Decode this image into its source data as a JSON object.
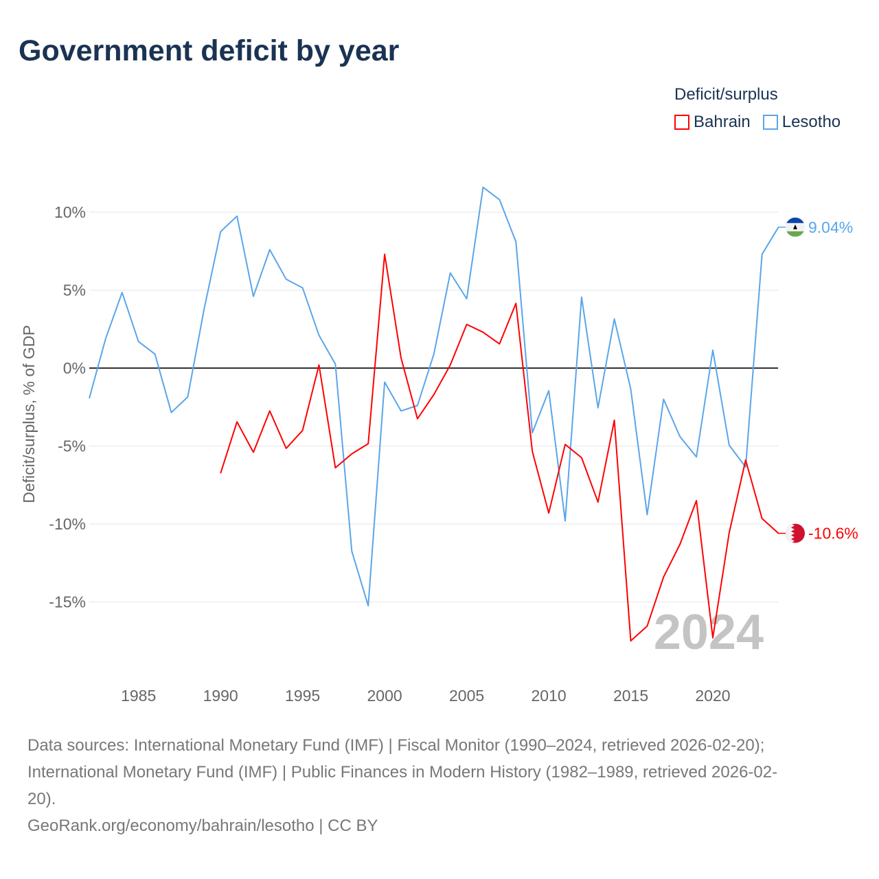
{
  "title": "Government deficit by year",
  "legend": {
    "title": "Deficit/surplus",
    "items": [
      {
        "name": "Bahrain",
        "color": "#ff0000"
      },
      {
        "name": "Lesotho",
        "color": "#5aa5ea"
      }
    ]
  },
  "year_watermark": "2024",
  "sources": {
    "line1": "Data sources: International Monetary Fund (IMF) | Fiscal Monitor (1990–2024, retrieved 2026-02-20);",
    "line2": "International Monetary Fund (IMF) | Public Finances in Modern History (1982–1989, retrieved 2026-02-",
    "line3": "20).",
    "line4": "GeoRank.org/economy/bahrain/lesotho | CC BY"
  },
  "chart_data": {
    "type": "line",
    "title": "Government deficit by year",
    "xlabel": "",
    "ylabel": "Deficit/surplus, % of GDP",
    "xlim": [
      1982,
      2024
    ],
    "ylim": [
      -19,
      12
    ],
    "xticks": [
      1985,
      1990,
      1995,
      2000,
      2005,
      2010,
      2015,
      2020
    ],
    "yticks": [
      {
        "v": 10,
        "label": "10%"
      },
      {
        "v": 5,
        "label": "5%"
      },
      {
        "v": 0,
        "label": "0%"
      },
      {
        "v": -5,
        "label": "-5%"
      },
      {
        "v": -10,
        "label": "-10%"
      },
      {
        "v": -15,
        "label": "-15%"
      }
    ],
    "grid": true,
    "series": [
      {
        "name": "Lesotho",
        "color": "#5aa5ea",
        "end_label": "9.04%",
        "start_year": 1982,
        "values": [
          -1.94,
          1.9,
          4.85,
          1.7,
          0.9,
          -2.85,
          -1.85,
          3.8,
          8.75,
          9.75,
          4.6,
          7.6,
          5.7,
          5.15,
          2.1,
          0.25,
          -11.75,
          -15.25,
          -0.9,
          -2.75,
          -2.4,
          0.9,
          6.1,
          4.45,
          11.6,
          10.8,
          8.1,
          -4.15,
          -1.45,
          -9.8,
          4.55,
          -2.55,
          3.15,
          -1.35,
          -9.4,
          -2.0,
          -4.4,
          -5.7,
          1.15,
          -4.95,
          -6.35,
          7.3,
          9.04
        ]
      },
      {
        "name": "Bahrain",
        "color": "#ff0000",
        "end_label": "-10.6%",
        "start_year": 1990,
        "values": [
          -6.75,
          -3.45,
          -5.4,
          -2.75,
          -5.15,
          -4.0,
          0.2,
          -6.4,
          -5.5,
          -4.85,
          7.3,
          0.65,
          -3.25,
          -1.7,
          0.2,
          2.8,
          2.3,
          1.55,
          4.15,
          -5.35,
          -9.3,
          -4.9,
          -5.75,
          -8.6,
          -3.35,
          -17.5,
          -16.55,
          -13.4,
          -11.3,
          -8.5,
          -17.3,
          -10.55,
          -5.9,
          -9.65,
          -10.6
        ]
      }
    ]
  }
}
